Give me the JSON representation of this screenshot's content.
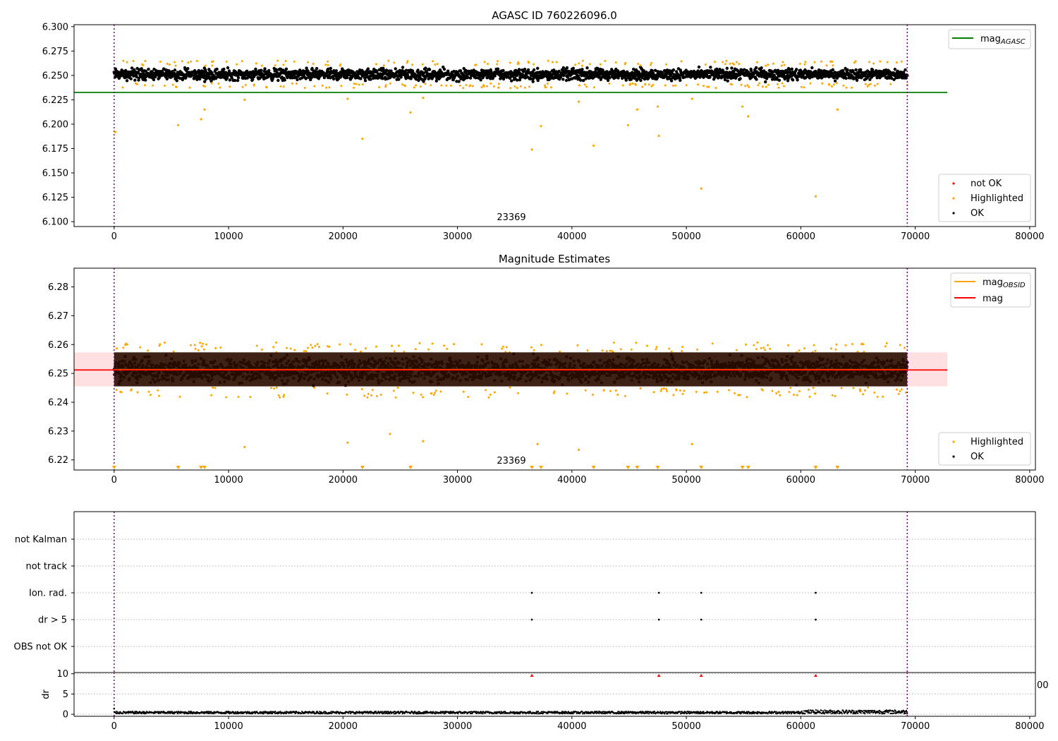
{
  "chart_data": [
    {
      "type": "scatter",
      "title": "AGASC ID 760226096.0",
      "xlim": [
        -3500,
        80500
      ],
      "ylim": [
        6.095,
        6.302
      ],
      "xticks": [
        0,
        10000,
        20000,
        30000,
        40000,
        50000,
        60000,
        70000,
        80000
      ],
      "xtick_labels": [
        "0",
        "10000",
        "20000",
        "30000",
        "40000",
        "50000",
        "60000",
        "70000",
        "80000"
      ],
      "yticks": [
        6.1,
        6.125,
        6.15,
        6.175,
        6.2,
        6.225,
        6.25,
        6.275,
        6.3
      ],
      "ytick_labels": [
        "6.100",
        "6.125",
        "6.150",
        "6.175",
        "6.200",
        "6.225",
        "6.250",
        "6.275",
        "6.300"
      ],
      "obsid_label": "23369",
      "obsid_label_pos": [
        33000,
        6.102
      ],
      "vlines": [
        0,
        69300
      ],
      "data_range": [
        0,
        69300
      ],
      "hlines": [
        {
          "name": "mag_AGASC",
          "y": 6.2325,
          "color": "#008000",
          "x": [
            -3500,
            72800
          ]
        }
      ],
      "band": {
        "center": 6.251,
        "halfwidth": 0.0085
      },
      "outliers": [
        [
          100,
          6.192
        ],
        [
          5600,
          6.199
        ],
        [
          7600,
          6.205
        ],
        [
          7900,
          6.215
        ],
        [
          11400,
          6.225
        ],
        [
          20400,
          6.226
        ],
        [
          21700,
          6.185
        ],
        [
          25900,
          6.212
        ],
        [
          27000,
          6.227
        ],
        [
          36500,
          6.174
        ],
        [
          37300,
          6.198
        ],
        [
          40600,
          6.223
        ],
        [
          41900,
          6.178
        ],
        [
          44900,
          6.199
        ],
        [
          45700,
          6.215
        ],
        [
          47500,
          6.218
        ],
        [
          47600,
          6.188
        ],
        [
          50500,
          6.226
        ],
        [
          51300,
          6.134
        ],
        [
          54900,
          6.218
        ],
        [
          55400,
          6.208
        ],
        [
          61300,
          6.126
        ],
        [
          63200,
          6.215
        ]
      ],
      "legends": [
        {
          "position": "upper right",
          "entries": [
            {
              "label": "mag",
              "sub": "AGASC",
              "color": "#008000",
              "marker": "line"
            }
          ]
        },
        {
          "position": "lower right",
          "entries": [
            {
              "label": "not OK",
              "color": "#ff0000",
              "marker": "dot"
            },
            {
              "label": "Highlighted",
              "color": "#ffa500",
              "marker": "dot"
            },
            {
              "label": "OK",
              "color": "#000000",
              "marker": "dot"
            }
          ]
        }
      ]
    },
    {
      "type": "scatter",
      "title": "Magnitude Estimates",
      "xlim": [
        -3500,
        80500
      ],
      "ylim": [
        6.2165,
        6.2865
      ],
      "xticks": [
        0,
        10000,
        20000,
        30000,
        40000,
        50000,
        60000,
        70000,
        80000
      ],
      "xtick_labels": [
        "0",
        "10000",
        "20000",
        "30000",
        "40000",
        "50000",
        "60000",
        "70000",
        "80000"
      ],
      "yticks": [
        6.22,
        6.23,
        6.24,
        6.25,
        6.26,
        6.27,
        6.28
      ],
      "ytick_labels": [
        "6.22",
        "6.23",
        "6.24",
        "6.25",
        "6.26",
        "6.27",
        "6.28"
      ],
      "obsid_label": "23369",
      "obsid_label_pos": [
        33000,
        6.2175
      ],
      "vlines": [
        0,
        69300
      ],
      "data_range": [
        0,
        69300
      ],
      "hlines": [
        {
          "name": "mag_OBSID",
          "y": 6.2513,
          "color": "#ffa500",
          "x": [
            0,
            69300
          ]
        },
        {
          "name": "mag",
          "y": 6.2512,
          "color": "#ff0000",
          "x": [
            -3500,
            72800
          ]
        }
      ],
      "band": {
        "center": 6.2512,
        "halfwidth": 0.0058
      },
      "shaded_range": {
        "y": [
          6.2455,
          6.2573
        ],
        "x": [
          -3500,
          72800
        ],
        "color": "#ffe0e2"
      },
      "outliers": [
        [
          11400,
          6.2245
        ],
        [
          20400,
          6.226
        ],
        [
          24100,
          6.229
        ],
        [
          27000,
          6.2265
        ],
        [
          37000,
          6.2255
        ],
        [
          40600,
          6.2235
        ],
        [
          50500,
          6.2255
        ]
      ],
      "clipped_markers_x": [
        0,
        5600,
        7600,
        7900,
        21700,
        25900,
        36500,
        37300,
        41900,
        44900,
        45700,
        47500,
        51300,
        54900,
        55400,
        61300,
        63200
      ],
      "legends": [
        {
          "position": "upper right",
          "entries": [
            {
              "label": "mag",
              "sub": "OBSID",
              "color": "#ffa500",
              "marker": "line"
            },
            {
              "label": "mag",
              "sub": "",
              "color": "#ff0000",
              "marker": "line"
            }
          ]
        },
        {
          "position": "lower right",
          "entries": [
            {
              "label": "Highlighted",
              "color": "#ffa500",
              "marker": "dot"
            },
            {
              "label": "OK",
              "color": "#000000",
              "marker": "dot"
            }
          ]
        }
      ]
    },
    {
      "type": "scatter",
      "title": "",
      "xlim": [
        -3500,
        80500
      ],
      "categories": [
        "not Kalman",
        "not track",
        "Ion. rad.",
        "dr > 5",
        "OBS not OK"
      ],
      "flags": {
        "Ion. rad.": [
          36500,
          47600,
          51300,
          61300
        ],
        "dr > 5": [
          36500,
          47600,
          51300,
          61300
        ]
      },
      "vlines": [
        0,
        69300
      ]
    },
    {
      "type": "scatter",
      "title": "",
      "ylabel": "dr",
      "xlim": [
        -3500,
        80500
      ],
      "ylim": [
        -0.5,
        10.3
      ],
      "yticks": [
        0,
        5,
        10
      ],
      "ytick_labels": [
        "0",
        "5",
        "10"
      ],
      "xticks": [
        0,
        10000,
        20000,
        30000,
        40000,
        50000,
        60000,
        70000,
        80000
      ],
      "xtick_labels": [
        "0",
        "10000",
        "20000",
        "30000",
        "40000",
        "50000",
        "60000",
        "70000",
        "80000"
      ],
      "clipped_markers_x": [
        36500,
        47600,
        51300,
        61300
      ],
      "vlines": [
        0,
        69300
      ],
      "stray_label": "00"
    }
  ]
}
